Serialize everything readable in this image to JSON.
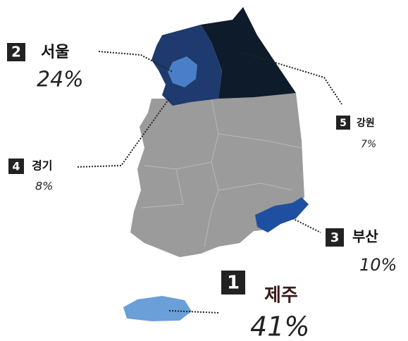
{
  "regions": [
    {
      "rank": 1,
      "name": "제주",
      "share": "41%"
    },
    {
      "rank": 2,
      "name": "서울",
      "share": "24%"
    },
    {
      "rank": 3,
      "name": "부산",
      "share": "10%"
    },
    {
      "rank": 4,
      "name": "경기",
      "share": "8%"
    },
    {
      "rank": 5,
      "name": "강원",
      "share": "7%"
    }
  ]
}
